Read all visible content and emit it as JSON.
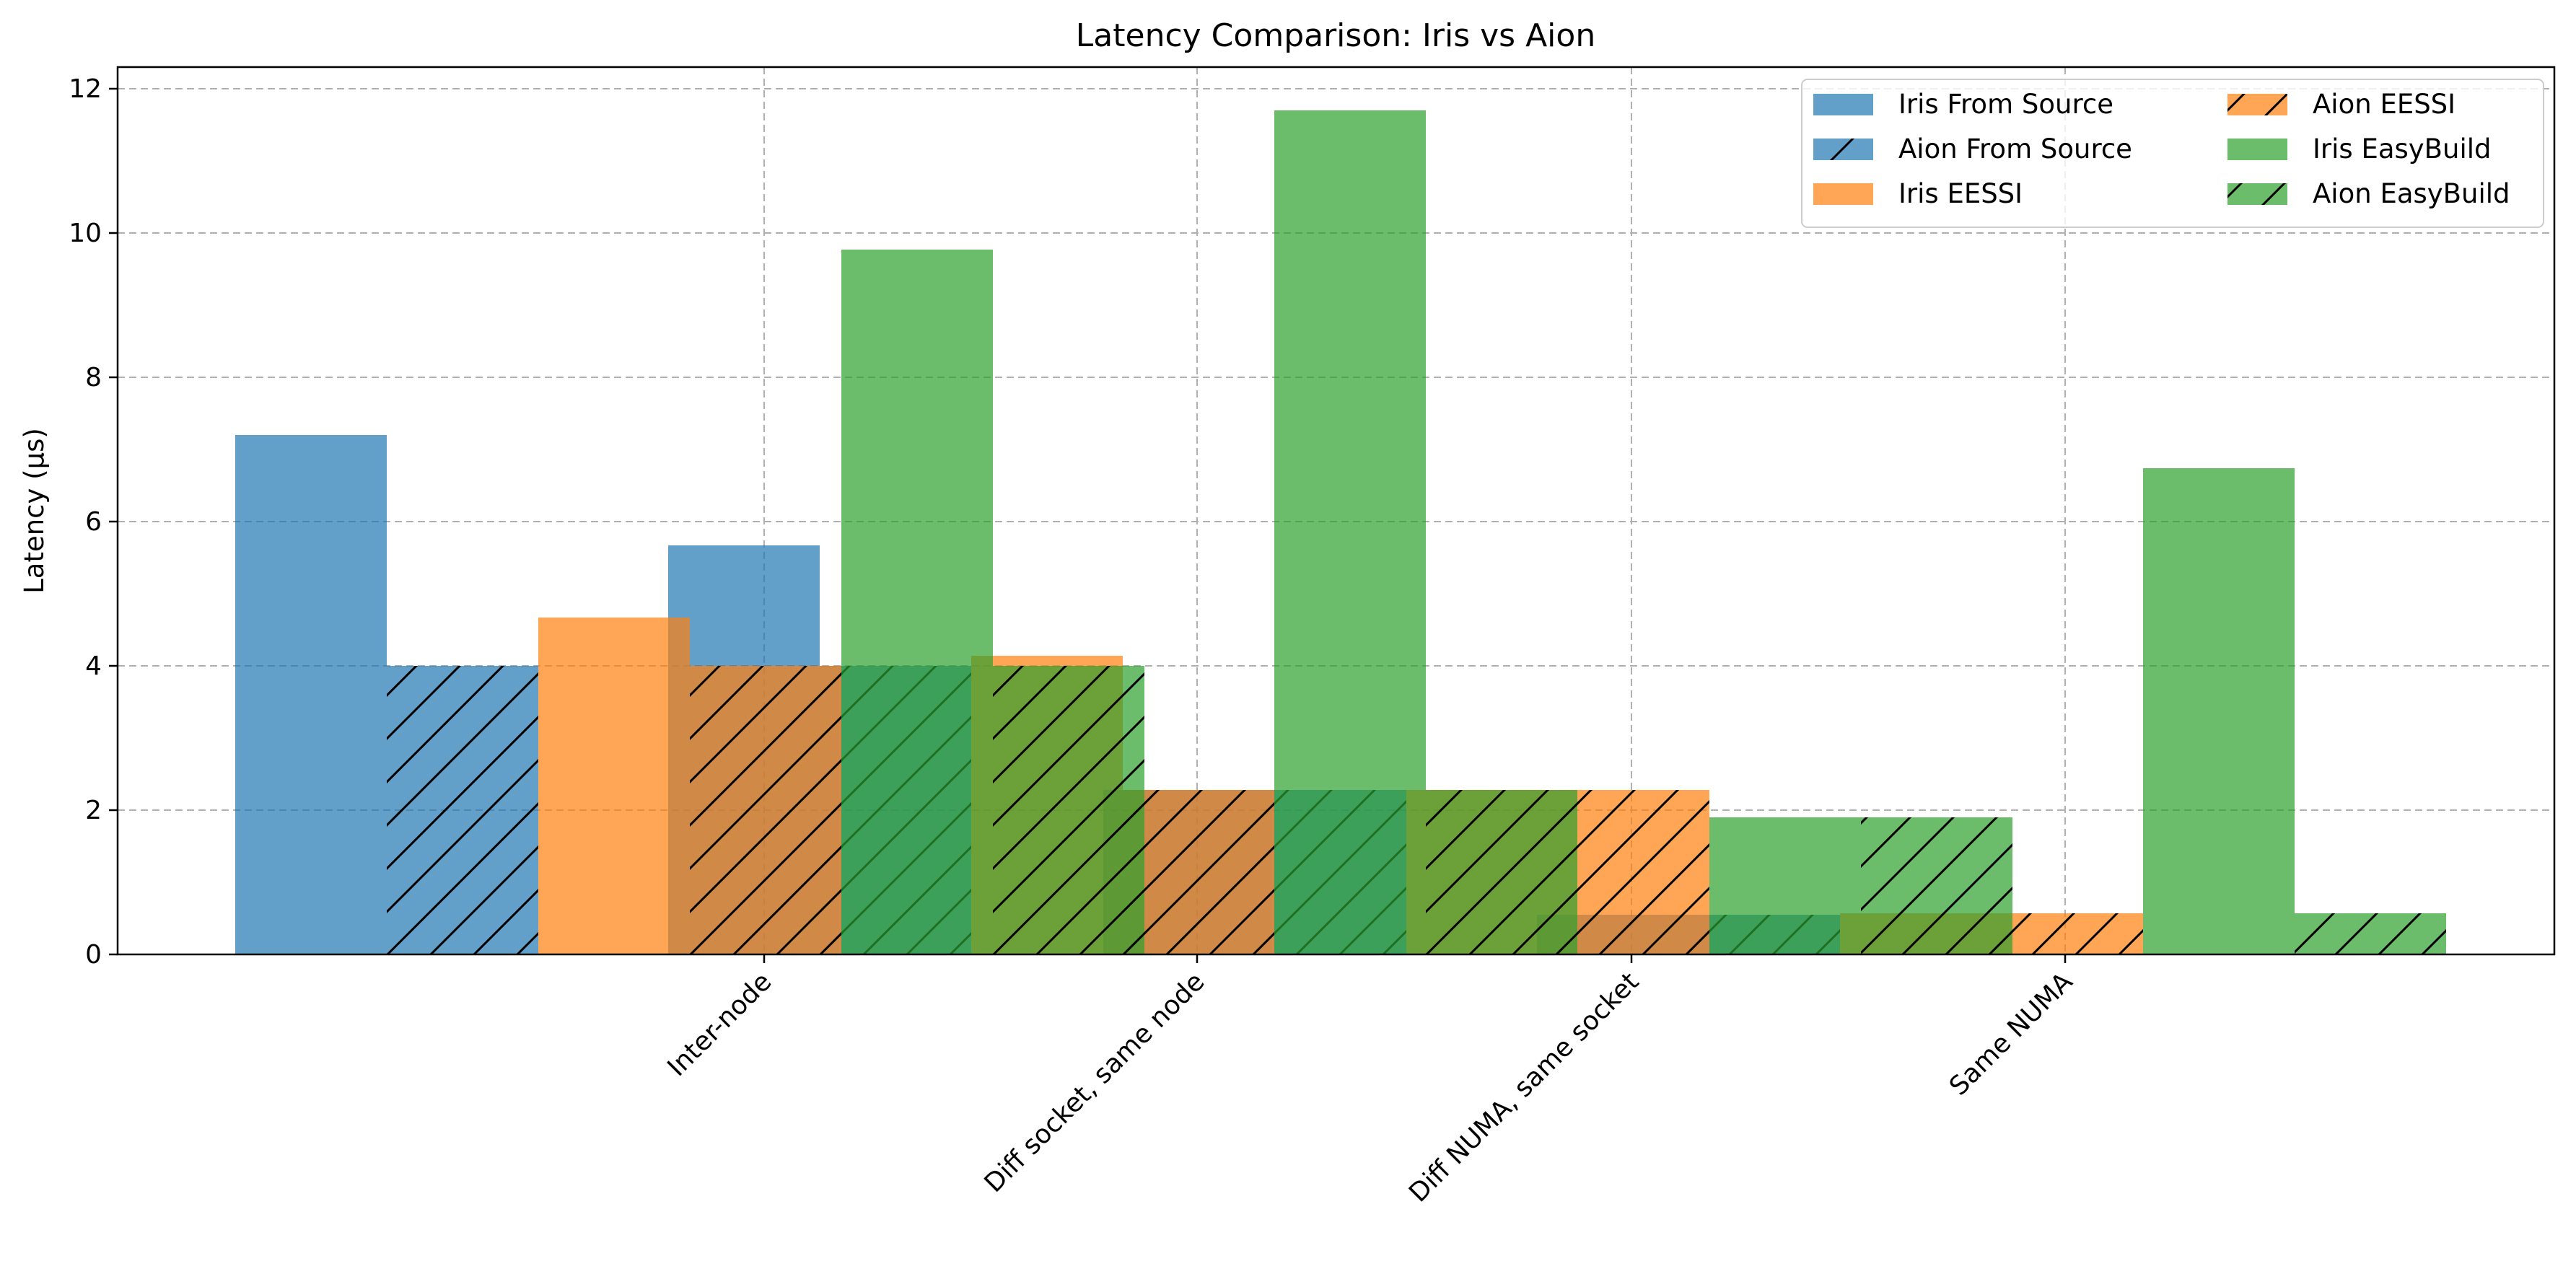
{
  "chart_data": {
    "type": "bar",
    "title": "Latency Comparison: Iris vs Aion",
    "xlabel": "",
    "ylabel": "Latency (µs)",
    "ylim": [
      0,
      12.3
    ],
    "yticks": [
      0,
      2,
      4,
      6,
      8,
      10,
      12
    ],
    "categories": [
      "Inter-node",
      "Diff socket, same node",
      "Diff NUMA, same socket",
      "Same NUMA"
    ],
    "grid": true,
    "legend_position": "top-right",
    "legend_columns": 2,
    "series": [
      {
        "name": "Iris From Source",
        "cluster": "Iris",
        "method": "From Source",
        "color": "#1f77b4",
        "hatch": false,
        "values": [
          7.2,
          5.67,
          2.28,
          0.55
        ]
      },
      {
        "name": "Aion From Source",
        "cluster": "Aion",
        "method": "From Source",
        "color": "#1f77b4",
        "hatch": true,
        "values": [
          4.0,
          4.0,
          2.28,
          0.55
        ]
      },
      {
        "name": "Iris EESSI",
        "cluster": "Iris",
        "method": "EESSI",
        "color": "#ff7f0e",
        "hatch": false,
        "values": [
          4.67,
          4.14,
          2.28,
          0.57
        ]
      },
      {
        "name": "Aion EESSI",
        "cluster": "Aion",
        "method": "EESSI",
        "color": "#ff7f0e",
        "hatch": true,
        "values": [
          4.0,
          2.28,
          2.28,
          0.57
        ]
      },
      {
        "name": "Iris EasyBuild",
        "cluster": "Iris",
        "method": "EasyBuild",
        "color": "#2ca02c",
        "hatch": false,
        "values": [
          9.77,
          11.7,
          1.9,
          6.74
        ]
      },
      {
        "name": "Aion EasyBuild",
        "cluster": "Aion",
        "method": "EasyBuild",
        "color": "#2ca02c",
        "hatch": true,
        "values": [
          4.0,
          2.28,
          1.9,
          0.57
        ]
      }
    ]
  }
}
